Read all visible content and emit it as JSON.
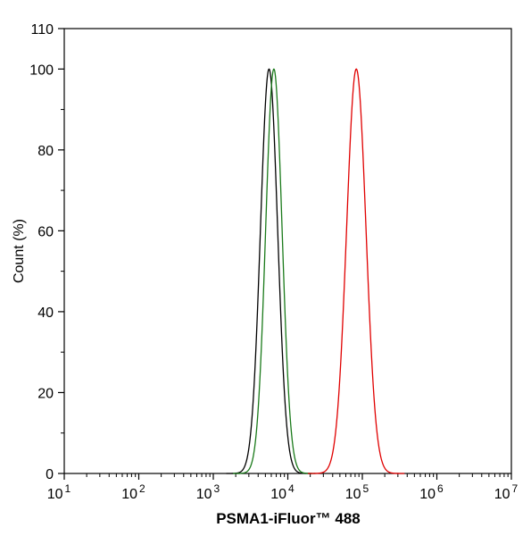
{
  "chart_data": {
    "type": "line",
    "title": "",
    "xlabel": "PSMA1-iFluor™ 488",
    "ylabel": "Count  (%)",
    "x_scale": "log",
    "xlim": [
      10,
      10000000
    ],
    "ylim": [
      0,
      110
    ],
    "x_ticks": [
      {
        "value": 10,
        "base": "10",
        "exp": "1"
      },
      {
        "value": 100,
        "base": "10",
        "exp": "2"
      },
      {
        "value": 1000,
        "base": "10",
        "exp": "3"
      },
      {
        "value": 10000,
        "base": "10",
        "exp": "4"
      },
      {
        "value": 100000,
        "base": "10",
        "exp": "5"
      },
      {
        "value": 1000000,
        "base": "10",
        "exp": "6"
      },
      {
        "value": 10000000,
        "base": "10",
        "exp": "7"
      }
    ],
    "y_ticks": [
      "0",
      "20",
      "40",
      "60",
      "80",
      "100",
      "110"
    ],
    "grid": false,
    "legend": "none",
    "series": [
      {
        "color": "#000000",
        "peak_x": 5600,
        "peak_y": 100,
        "width_log": 0.115
      },
      {
        "color": "#1a7a1a",
        "peak_x": 6500,
        "peak_y": 100,
        "width_log": 0.11
      },
      {
        "color": "#e00000",
        "peak_x": 83000,
        "peak_y": 100,
        "width_log": 0.13
      }
    ]
  }
}
